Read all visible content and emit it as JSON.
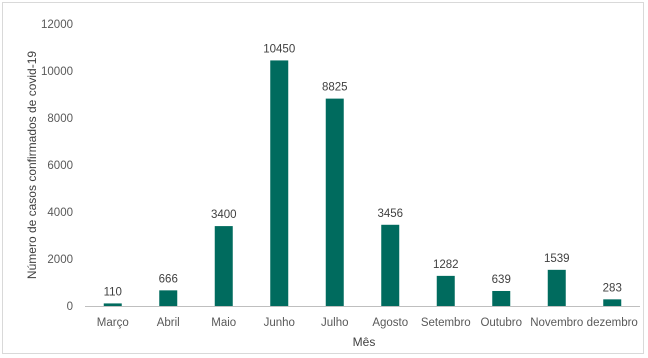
{
  "chart_data": {
    "type": "bar",
    "title": "",
    "xlabel": "Mês",
    "ylabel": "Número de casos confirmados de covid-19",
    "categories": [
      "Março",
      "Abril",
      "Maio",
      "Junho",
      "Julho",
      "Agosto",
      "Setembro",
      "Outubro",
      "Novembro",
      "dezembro"
    ],
    "values": [
      110,
      666,
      3400,
      10450,
      8825,
      3456,
      1282,
      639,
      1539,
      283
    ],
    "ylim": [
      0,
      12000
    ],
    "yticks": [
      0,
      2000,
      4000,
      6000,
      8000,
      10000,
      12000
    ],
    "data_labels": true,
    "grid": false,
    "legend": "none",
    "bar_color": "#006b5e",
    "axis_color": "#bfbfbf"
  }
}
